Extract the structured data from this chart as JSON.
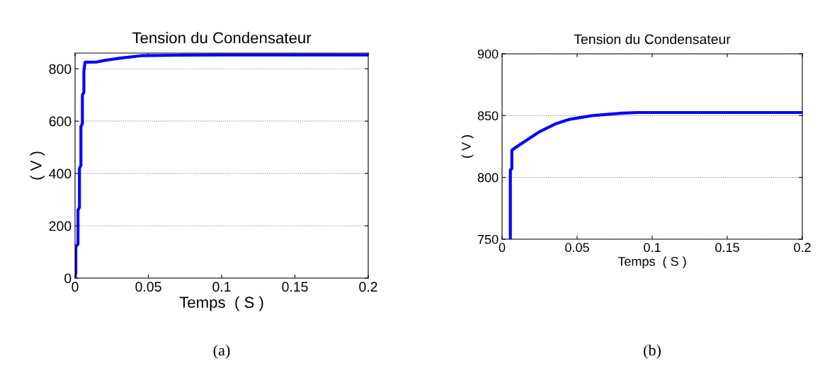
{
  "chart_data": [
    {
      "type": "line",
      "title": "Tension du Condensateur",
      "xlabel": "Temps  ( S )",
      "ylabel": "( V )",
      "x": [
        0,
        0.0005,
        0.0005,
        0.002,
        0.002,
        0.003,
        0.003,
        0.004,
        0.004,
        0.005,
        0.005,
        0.006,
        0.006,
        0.0068,
        0.015,
        0.02,
        0.03,
        0.045,
        0.07,
        0.1,
        0.15,
        0.2
      ],
      "series": [
        {
          "color": "#0000ff",
          "values": [
            0,
            20,
            120,
            130,
            260,
            270,
            420,
            430,
            580,
            590,
            700,
            710,
            790,
            825,
            826,
            832,
            840,
            850,
            852,
            853,
            853,
            853
          ]
        }
      ],
      "xlim": [
        0,
        0.2
      ],
      "xticks": [
        0,
        0.05,
        0.1,
        0.15,
        0.2
      ],
      "ylim": [
        0,
        860
      ],
      "yticks": [
        0,
        200,
        400,
        600,
        800
      ],
      "grid": "y",
      "annotations": [
        "(a)"
      ]
    },
    {
      "type": "line",
      "title": "Tension du Condensateur",
      "xlabel": "Temps  ( S )",
      "ylabel": "( V )",
      "x": [
        0.0055,
        0.0055,
        0.0065,
        0.0065,
        0.01,
        0.015,
        0.02,
        0.025,
        0.03,
        0.035,
        0.04,
        0.045,
        0.05,
        0.06,
        0.07,
        0.08,
        0.09,
        0.1,
        0.15,
        0.2
      ],
      "series": [
        {
          "color": "#0000ff",
          "values": [
            750,
            806,
            807,
            822,
            825,
            829,
            833,
            837,
            840,
            843,
            845,
            847,
            848,
            850,
            851,
            852,
            852.5,
            852.5,
            852.5,
            852.5
          ]
        }
      ],
      "xlim": [
        0,
        0.2
      ],
      "xticks": [
        0,
        0.05,
        0.1,
        0.15,
        0.2
      ],
      "ylim": [
        750,
        900
      ],
      "yticks": [
        750,
        800,
        850,
        900
      ],
      "grid": "y",
      "annotations": [
        "(b)"
      ]
    }
  ]
}
